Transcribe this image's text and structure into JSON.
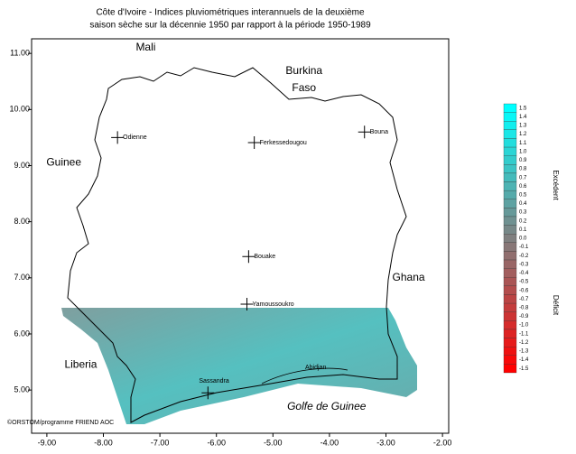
{
  "map": {
    "title": [
      "Côte d'Ivoire - Indices pluviométriques interannuels de la deuxième",
      "saison sèche sur la décennie 1950 par rapport à la période 1950-1989"
    ],
    "xlim": [
      -9.27,
      -1.89
    ],
    "ylim": [
      4.23,
      11.26
    ],
    "xticks": [
      {
        "value": -9,
        "label": "-9.00"
      },
      {
        "value": -8,
        "label": "-8.00"
      },
      {
        "value": -7,
        "label": "-7.00"
      },
      {
        "value": -6,
        "label": "-6.00"
      },
      {
        "value": -5,
        "label": "-5.00"
      },
      {
        "value": -4,
        "label": "-4.00"
      },
      {
        "value": -3,
        "label": "-3.00"
      },
      {
        "value": -2,
        "label": "-2.00"
      }
    ],
    "yticks": [
      {
        "value": 5,
        "label": "5.00"
      },
      {
        "value": 6,
        "label": "6.00"
      },
      {
        "value": 7,
        "label": "7.00"
      },
      {
        "value": 8,
        "label": "8.00"
      },
      {
        "value": 9,
        "label": "9.00"
      },
      {
        "value": 10,
        "label": "10.00"
      },
      {
        "value": 11,
        "label": "11.00"
      }
    ],
    "regions": [
      {
        "label": "Mali",
        "lon": -7.25,
        "lat": 11.1
      },
      {
        "label": "Burkina",
        "lon": -4.45,
        "lat": 10.68
      },
      {
        "label": "Faso",
        "lon": -4.45,
        "lat": 10.38
      },
      {
        "label": "Guinee",
        "lon": -8.7,
        "lat": 9.05
      },
      {
        "label": "Ghana",
        "lon": -2.6,
        "lat": 7.0
      },
      {
        "label": "Liberia",
        "lon": -8.4,
        "lat": 5.45
      },
      {
        "label": "Golfe de Guinee",
        "lon": -4.05,
        "lat": 4.7
      }
    ],
    "cities": [
      {
        "label": "Odienne",
        "lon": -7.75,
        "lat": 9.5
      },
      {
        "label": "Ferkessedougou",
        "lon": -5.33,
        "lat": 9.41
      },
      {
        "label": "Bouna",
        "lon": -3.38,
        "lat": 9.6
      },
      {
        "label": "Bouake",
        "lon": -5.43,
        "lat": 7.38
      },
      {
        "label": "Yamoussoukro",
        "lon": -5.46,
        "lat": 6.53
      },
      {
        "label": "Sassandra",
        "lon": -6.15,
        "lat": 4.95
      }
    ],
    "labels": [
      {
        "label": "Abidjan",
        "lon": -4.43,
        "lat": 5.4
      }
    ],
    "credit": "©ORSTOM/programme FRIEND AOC",
    "colorbar": {
      "ticks": [
        1.5,
        1.4,
        1.3,
        1.2,
        1.1,
        {
          "value": 1,
          "label": "1.0"
        },
        0.9,
        0.8,
        0.7,
        0.6,
        0.5,
        0.4,
        0.3,
        0.2,
        0.1,
        {
          "value": 0,
          "label": "0.0"
        },
        -0.1,
        -0.2,
        -0.3,
        -0.4,
        -0.5,
        -0.6,
        -0.7,
        -0.8,
        -0.9,
        {
          "value": -1,
          "label": "-1.0"
        },
        -1.1,
        -1.2,
        -1.3,
        -1.4,
        -1.5
      ],
      "top_label": "Excédent",
      "bottom_label": "Déficit"
    }
  }
}
